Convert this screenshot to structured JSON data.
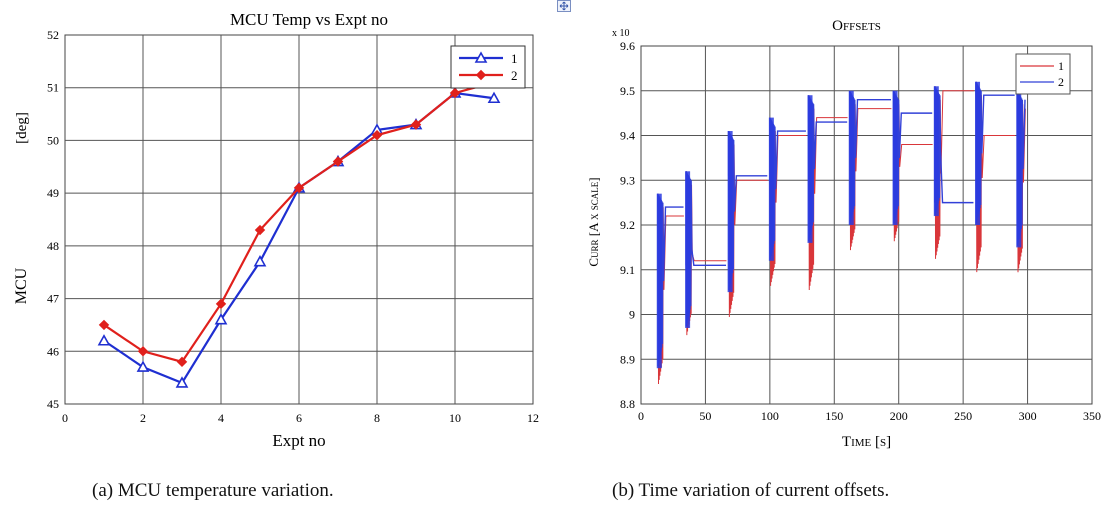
{
  "captions": {
    "left": "(a) MCU temperature variation.",
    "right": "(b) Time variation of current offsets."
  },
  "chart_data": [
    {
      "type": "line",
      "title": "MCU Temp vs Expt no",
      "xlabel": "Expt no",
      "ylabel": "MCU",
      "ylabel_unit": "[deg]",
      "xlim": [
        0,
        12
      ],
      "ylim": [
        45,
        52
      ],
      "xticks": [
        0,
        2,
        4,
        6,
        8,
        10,
        12
      ],
      "yticks": [
        45,
        46,
        47,
        48,
        49,
        50,
        51,
        52
      ],
      "grid": true,
      "legend": "top-right",
      "series": [
        {
          "name": "1",
          "color": "#1f2fd1",
          "marker": "triangle",
          "x": [
            1,
            2,
            3,
            4,
            5,
            6,
            7,
            8,
            9,
            10,
            11
          ],
          "values": [
            46.2,
            45.7,
            45.4,
            46.6,
            47.7,
            49.1,
            49.6,
            50.2,
            50.3,
            50.9,
            50.8
          ]
        },
        {
          "name": "2",
          "color": "#e0201c",
          "marker": "diamond",
          "x": [
            1,
            2,
            3,
            4,
            5,
            6,
            7,
            8,
            9,
            10,
            11
          ],
          "values": [
            46.5,
            46.0,
            45.8,
            46.9,
            48.3,
            49.1,
            49.6,
            50.1,
            50.3,
            50.9,
            51.1
          ]
        }
      ]
    },
    {
      "type": "line",
      "title": "Offsets",
      "xlabel": "Time [s]",
      "ylabel": "Curr [A x scale]",
      "exponent_label": "x 10",
      "xlim": [
        0,
        350
      ],
      "ylim": [
        8.8,
        9.6
      ],
      "xticks": [
        0,
        50,
        100,
        150,
        200,
        250,
        300,
        350
      ],
      "yticks": [
        8.8,
        8.9,
        9.0,
        9.1,
        9.2,
        9.3,
        9.4,
        9.5,
        9.6
      ],
      "grid": true,
      "legend": "top-right",
      "series": [
        {
          "name": "1",
          "color": "#d9363a",
          "levels": [
            9.22,
            9.12,
            9.3,
            9.4,
            9.44,
            9.46,
            9.38,
            9.5,
            9.4,
            9.46
          ],
          "dips": [
            8.84,
            8.95,
            8.99,
            9.06,
            9.05,
            9.14,
            9.16,
            9.12,
            9.09,
            9.09
          ]
        },
        {
          "name": "2",
          "color": "#3240d8",
          "levels": [
            9.24,
            9.11,
            9.31,
            9.41,
            9.43,
            9.48,
            9.45,
            9.25,
            9.49,
            9.48
          ],
          "dips": [
            8.88,
            8.97,
            9.05,
            9.12,
            9.16,
            9.2,
            9.2,
            9.22,
            9.2,
            9.15
          ]
        }
      ],
      "pulses": {
        "start": [
          13,
          35,
          68,
          100,
          130,
          162,
          196,
          228,
          260,
          292
        ],
        "peak": [
          9.27,
          9.32,
          9.41,
          9.44,
          9.49,
          9.5,
          9.5,
          9.51,
          9.52,
          9.5
        ]
      }
    }
  ]
}
